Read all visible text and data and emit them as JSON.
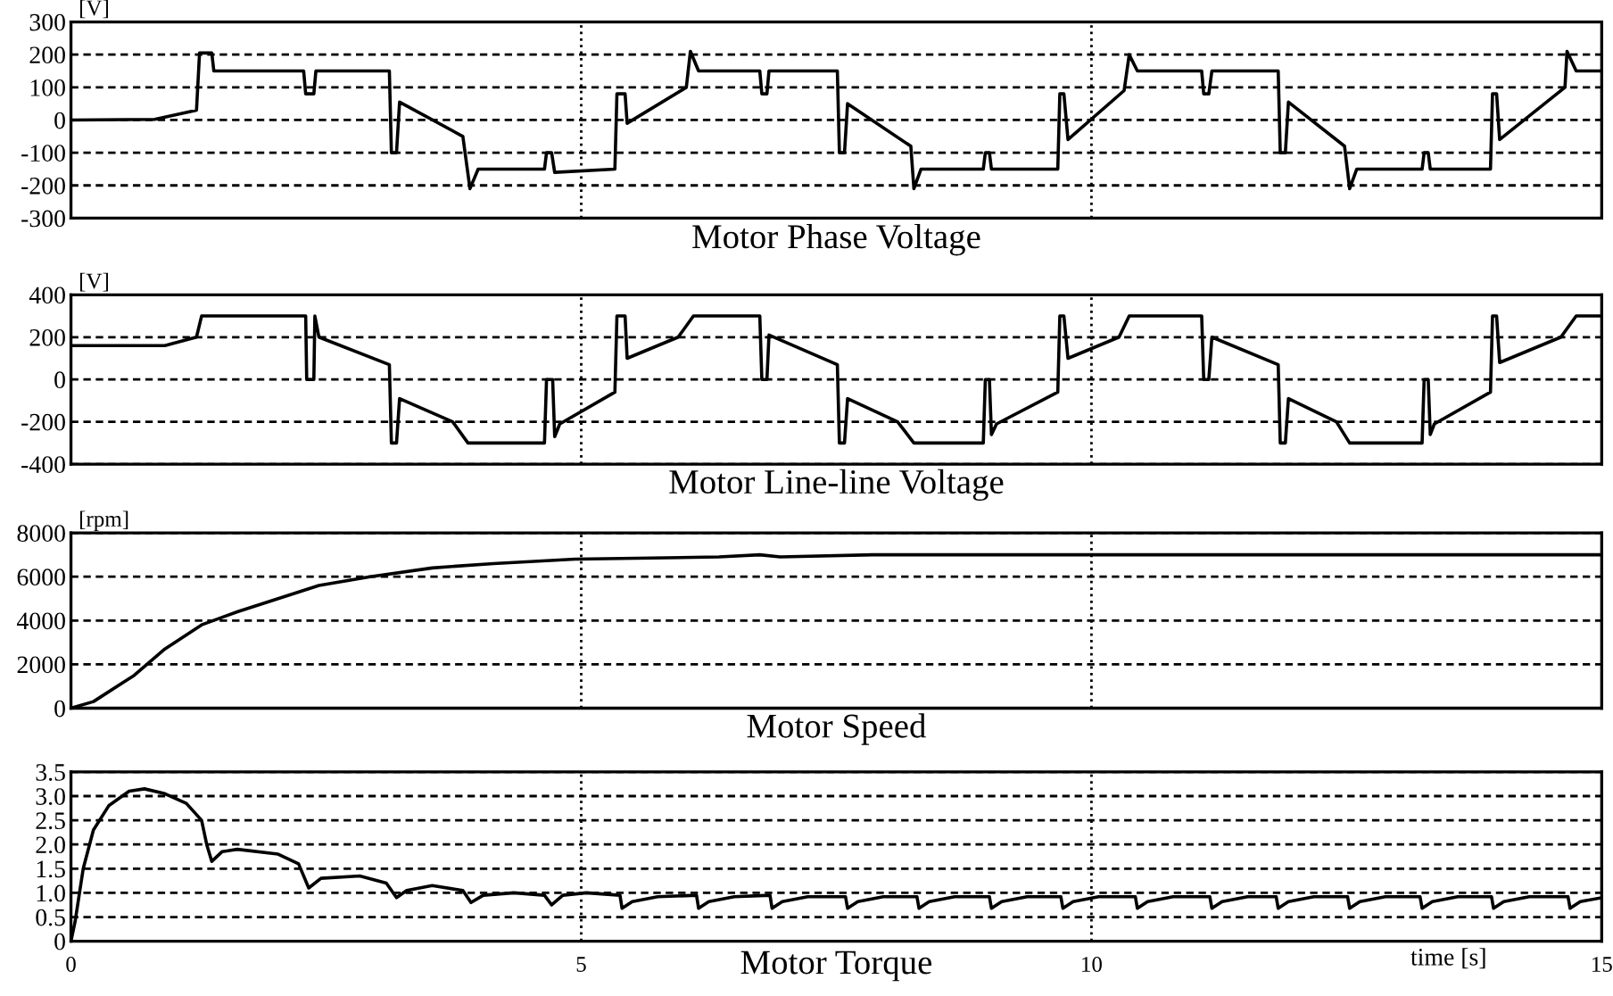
{
  "chart_data": [
    {
      "type": "line",
      "title": "Motor Phase Voltage",
      "ylabel": "[V]",
      "xlim": [
        0,
        15
      ],
      "xticks": [
        0,
        5,
        10,
        15
      ],
      "ylim": [
        -300,
        300
      ],
      "yticks": [
        -300,
        -200,
        -100,
        0,
        100,
        200,
        300
      ],
      "grid": true,
      "tick_labels": "y",
      "series": [
        {
          "color": "#000000",
          "x": [
            0,
            0.82,
            1.23,
            1.26,
            1.38,
            1.4,
            2.28,
            2.3,
            2.38,
            2.4,
            3.12,
            3.14,
            3.19,
            3.22,
            3.84,
            3.91,
            3.99,
            4.64,
            4.66,
            4.71,
            4.74,
            5.33,
            5.35,
            5.43,
            5.45,
            6.03,
            6.07,
            6.15,
            6.75,
            6.77,
            6.82,
            6.84,
            7.51,
            7.53,
            7.58,
            7.61,
            8.23,
            8.26,
            8.33,
            8.94,
            8.96,
            9.0,
            9.02,
            9.67,
            9.69,
            9.73,
            9.77,
            10.32,
            10.37,
            10.45,
            11.08,
            11.1,
            11.15,
            11.18,
            11.83,
            11.85,
            11.9,
            11.93,
            12.48,
            12.53,
            12.6,
            13.24,
            13.26,
            13.3,
            13.32,
            13.91,
            13.93,
            13.97,
            14.0,
            14.64,
            14.66,
            14.75,
            15
          ],
          "values": [
            0,
            2,
            30,
            205,
            205,
            150,
            150,
            80,
            80,
            150,
            150,
            -100,
            -100,
            55,
            -50,
            -210,
            -150,
            -150,
            -100,
            -100,
            -160,
            -150,
            80,
            80,
            -10,
            100,
            210,
            150,
            150,
            80,
            80,
            150,
            150,
            -100,
            -100,
            50,
            -80,
            -210,
            -150,
            -150,
            -100,
            -100,
            -150,
            -150,
            80,
            80,
            -60,
            90,
            200,
            150,
            150,
            80,
            80,
            150,
            150,
            -100,
            -100,
            55,
            -80,
            -210,
            -150,
            -150,
            -100,
            -100,
            -150,
            -150,
            80,
            80,
            -60,
            100,
            210,
            150,
            150
          ]
        }
      ]
    },
    {
      "type": "line",
      "title": "Motor Line-line Voltage",
      "ylabel": "[V]",
      "xlim": [
        0,
        15
      ],
      "xticks": [
        0,
        5,
        10,
        15
      ],
      "ylim": [
        -400,
        400
      ],
      "yticks": [
        -400,
        -200,
        0,
        200,
        400
      ],
      "grid": true,
      "tick_labels": "y",
      "series": [
        {
          "color": "#000000",
          "x": [
            0,
            0.92,
            1.23,
            1.28,
            2.3,
            2.31,
            2.38,
            2.39,
            2.43,
            3.12,
            3.14,
            3.19,
            3.22,
            3.74,
            3.89,
            4.64,
            4.66,
            4.72,
            4.74,
            4.79,
            5.33,
            5.35,
            5.43,
            5.45,
            5.95,
            6.1,
            6.75,
            6.77,
            6.82,
            6.84,
            7.51,
            7.53,
            7.58,
            7.61,
            8.1,
            8.26,
            8.94,
            8.96,
            9.0,
            9.02,
            9.07,
            9.67,
            9.69,
            9.73,
            9.77,
            10.27,
            10.37,
            11.08,
            11.1,
            11.15,
            11.18,
            11.83,
            11.85,
            11.9,
            11.93,
            12.4,
            12.53,
            13.24,
            13.26,
            13.3,
            13.32,
            13.36,
            13.91,
            13.93,
            13.97,
            14.0,
            14.6,
            14.75,
            15
          ],
          "values": [
            160,
            160,
            200,
            300,
            300,
            0,
            0,
            300,
            200,
            70,
            -300,
            -300,
            -90,
            -200,
            -300,
            -300,
            0,
            0,
            -270,
            -210,
            -60,
            300,
            300,
            100,
            200,
            300,
            300,
            0,
            0,
            210,
            70,
            -300,
            -300,
            -90,
            -200,
            -300,
            -300,
            0,
            0,
            -260,
            -210,
            -60,
            300,
            300,
            100,
            200,
            300,
            300,
            0,
            0,
            200,
            70,
            -300,
            -300,
            -90,
            -200,
            -300,
            -300,
            0,
            0,
            -260,
            -210,
            -60,
            300,
            300,
            80,
            200,
            300,
            300
          ]
        }
      ]
    },
    {
      "type": "line",
      "title": "Motor Speed",
      "ylabel": "[rpm]",
      "xlim": [
        0,
        15
      ],
      "xticks": [
        0,
        5,
        10,
        15
      ],
      "ylim": [
        0,
        8000
      ],
      "yticks": [
        0,
        2000,
        4000,
        6000,
        8000
      ],
      "grid": true,
      "tick_labels": "y",
      "series": [
        {
          "color": "#000000",
          "x": [
            0,
            0.22,
            0.62,
            0.92,
            1.28,
            1.63,
            2.03,
            2.43,
            2.93,
            3.54,
            4.14,
            4.94,
            6.35,
            6.75,
            6.95,
            7.86,
            15
          ],
          "values": [
            0,
            300,
            1500,
            2700,
            3800,
            4400,
            5000,
            5600,
            6000,
            6400,
            6600,
            6800,
            6900,
            7000,
            6900,
            7000,
            7000
          ]
        }
      ]
    },
    {
      "type": "line",
      "title": "Motor Torque",
      "xlabel": "time [s]",
      "xlim": [
        0,
        15
      ],
      "xticks": [
        0,
        5,
        10,
        15
      ],
      "ylim": [
        0,
        3.5
      ],
      "yticks": [
        {
          "value": 0,
          "label": "0"
        },
        {
          "value": 0.5,
          "label": "0.5"
        },
        {
          "value": 1,
          "label": "1.0"
        },
        {
          "value": 1.5,
          "label": "1.5"
        },
        {
          "value": 2,
          "label": "2.0"
        },
        {
          "value": 2.5,
          "label": "2.5"
        },
        {
          "value": 3,
          "label": "3.0"
        },
        {
          "value": 3.5,
          "label": "3.5"
        }
      ],
      "grid": true,
      "series": [
        {
          "color": "#000000",
          "x": [
            0,
            0.04,
            0.12,
            0.22,
            0.37,
            0.57,
            0.72,
            0.92,
            1.13,
            1.28,
            1.33,
            1.38,
            1.48,
            1.63,
            2.03,
            2.23,
            2.33,
            2.45,
            2.83,
            3.09,
            3.19,
            3.29,
            3.54,
            3.84,
            3.92,
            4.04,
            4.34,
            4.64,
            4.71,
            4.82,
            5.05,
            5.38,
            5.4,
            5.5,
            5.75,
            6.13,
            6.15,
            6.25,
            6.5,
            6.85,
            6.87,
            6.97,
            7.22,
            7.59,
            7.61,
            7.71,
            7.96,
            8.29,
            8.31,
            8.41,
            8.66,
            9.0,
            9.02,
            9.12,
            9.37,
            9.7,
            9.72,
            9.82,
            10.07,
            10.43,
            10.45,
            10.55,
            10.8,
            11.16,
            11.18,
            11.28,
            11.53,
            11.81,
            11.83,
            11.93,
            12.18,
            12.51,
            12.53,
            12.63,
            12.88,
            13.22,
            13.24,
            13.34,
            13.59,
            13.92,
            13.94,
            14.04,
            14.29,
            14.67,
            14.69,
            14.79,
            15
          ],
          "values": [
            0,
            0.4,
            1.5,
            2.3,
            2.8,
            3.1,
            3.15,
            3.05,
            2.85,
            2.5,
            2.0,
            1.65,
            1.85,
            1.9,
            1.8,
            1.6,
            1.1,
            1.3,
            1.35,
            1.2,
            0.9,
            1.05,
            1.15,
            1.05,
            0.8,
            0.95,
            1.0,
            0.95,
            0.75,
            0.95,
            1.0,
            0.95,
            0.68,
            0.82,
            0.92,
            0.95,
            0.68,
            0.82,
            0.92,
            0.95,
            0.68,
            0.82,
            0.92,
            0.92,
            0.68,
            0.82,
            0.92,
            0.92,
            0.68,
            0.82,
            0.92,
            0.92,
            0.68,
            0.82,
            0.92,
            0.92,
            0.68,
            0.82,
            0.92,
            0.92,
            0.68,
            0.82,
            0.92,
            0.92,
            0.68,
            0.82,
            0.92,
            0.92,
            0.68,
            0.82,
            0.92,
            0.92,
            0.68,
            0.82,
            0.92,
            0.92,
            0.68,
            0.82,
            0.92,
            0.92,
            0.68,
            0.82,
            0.92,
            0.92,
            0.68,
            0.82,
            0.9
          ]
        }
      ]
    }
  ]
}
